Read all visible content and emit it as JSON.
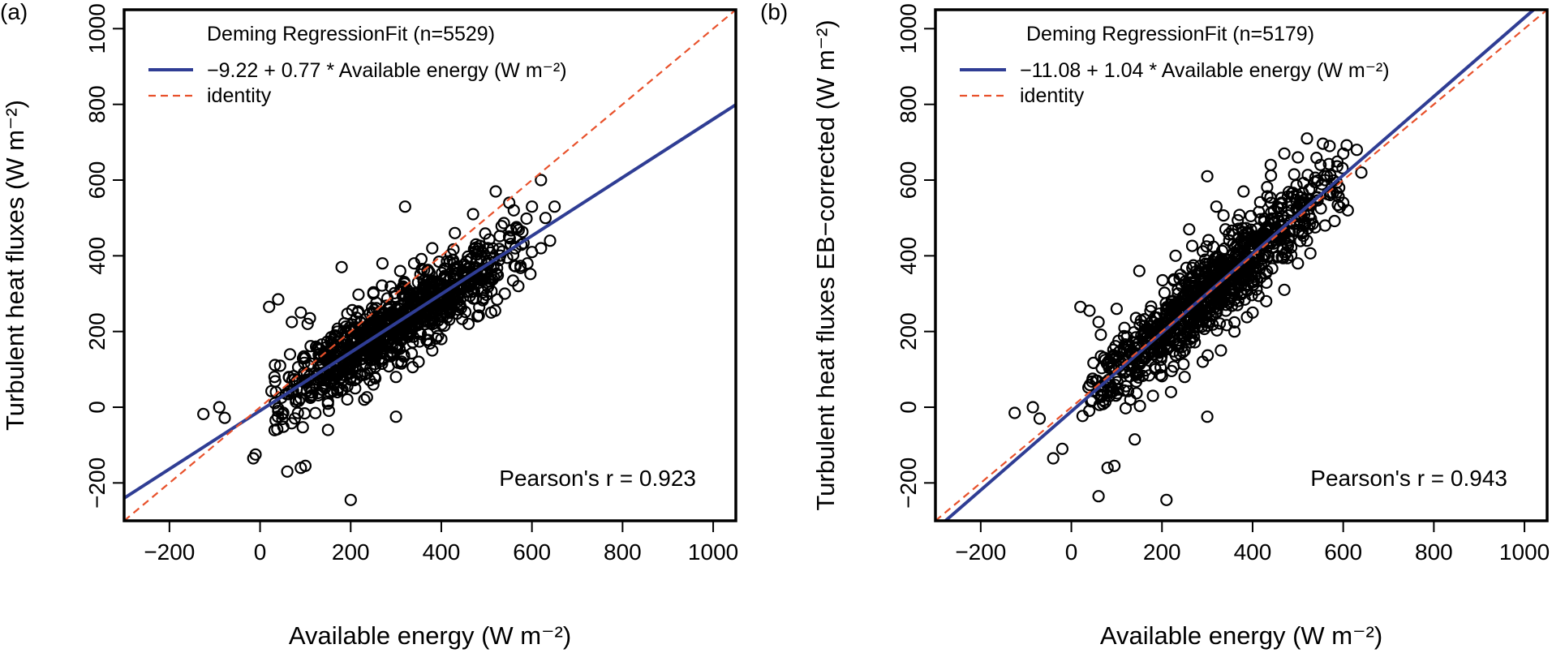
{
  "colors": {
    "fit": "#2f3d94",
    "identity": "#e8512b",
    "points": "#000000"
  },
  "chart_data": [
    {
      "type": "scatter",
      "panel_label": "(a)",
      "xlabel": "Available energy (W m⁻²)",
      "ylabel": "Turbulent heat fluxes (W m⁻²)",
      "xlim": [
        -300,
        1050
      ],
      "ylim": [
        -300,
        1050
      ],
      "xticks": [
        -200,
        0,
        200,
        400,
        600,
        800,
        1000
      ],
      "yticks": [
        -200,
        0,
        200,
        400,
        600,
        800,
        1000
      ],
      "xtick_labels": [
        "−200",
        "0",
        "200",
        "400",
        "600",
        "800",
        "1000"
      ],
      "ytick_labels": [
        "−200",
        "0",
        "200",
        "400",
        "600",
        "800",
        "1000"
      ],
      "legend_title": "Deming RegressionFit (n=5529)",
      "legend": [
        {
          "label": "−9.22 + 0.77 * Available energy (W m⁻²)",
          "style": "solid"
        },
        {
          "label": "identity",
          "style": "dashed"
        }
      ],
      "fit": {
        "intercept": -9.22,
        "slope": 0.77
      },
      "identity": {
        "intercept": 0,
        "slope": 1
      },
      "n": 5529,
      "pearson_text": "Pearson's r = 0.923",
      "pearson_r": 0.923,
      "outliers": [
        [
          -125,
          -18
        ],
        [
          -90,
          0
        ],
        [
          -78,
          -28
        ],
        [
          -15,
          -135
        ],
        [
          -10,
          -125
        ],
        [
          40,
          -10
        ],
        [
          35,
          40
        ],
        [
          60,
          -170
        ],
        [
          90,
          -160
        ],
        [
          100,
          -155
        ],
        [
          150,
          -60
        ],
        [
          200,
          -245
        ],
        [
          300,
          -25
        ],
        [
          320,
          530
        ],
        [
          180,
          370
        ],
        [
          40,
          285
        ],
        [
          20,
          265
        ],
        [
          70,
          225
        ],
        [
          90,
          250
        ],
        [
          110,
          235
        ],
        [
          250,
          300
        ],
        [
          270,
          380
        ],
        [
          340,
          380
        ],
        [
          380,
          420
        ],
        [
          430,
          460
        ],
        [
          470,
          510
        ],
        [
          520,
          570
        ],
        [
          550,
          540
        ],
        [
          560,
          520
        ],
        [
          620,
          600
        ],
        [
          600,
          530
        ],
        [
          630,
          500
        ],
        [
          650,
          530
        ],
        [
          640,
          440
        ],
        [
          620,
          420
        ],
        [
          600,
          410
        ],
        [
          590,
          380
        ],
        [
          570,
          320
        ],
        [
          540,
          300
        ],
        [
          510,
          250
        ],
        [
          480,
          240
        ],
        [
          460,
          220
        ],
        [
          400,
          180
        ],
        [
          380,
          150
        ],
        [
          350,
          120
        ],
        [
          300,
          80
        ],
        [
          250,
          60
        ],
        [
          230,
          20
        ],
        [
          210,
          50
        ],
        [
          150,
          15
        ]
      ],
      "cloud": {
        "x_min": -60,
        "x_max": 600,
        "residual_sd": 48,
        "seed": 11,
        "count": 900
      }
    },
    {
      "type": "scatter",
      "panel_label": "(b)",
      "xlabel": "Available energy (W m⁻²)",
      "ylabel": "Turbulent heat fluxes EB−corrected (W m⁻²)",
      "xlim": [
        -300,
        1050
      ],
      "ylim": [
        -300,
        1050
      ],
      "xticks": [
        -200,
        0,
        200,
        400,
        600,
        800,
        1000
      ],
      "yticks": [
        -200,
        0,
        200,
        400,
        600,
        800,
        1000
      ],
      "xtick_labels": [
        "−200",
        "0",
        "200",
        "400",
        "600",
        "800",
        "1000"
      ],
      "ytick_labels": [
        "−200",
        "0",
        "200",
        "400",
        "600",
        "800",
        "1000"
      ],
      "legend_title": "Deming RegressionFit (n=5179)",
      "legend": [
        {
          "label": "−11.08 + 1.04 * Available energy (W m⁻²)",
          "style": "solid"
        },
        {
          "label": "identity",
          "style": "dashed"
        }
      ],
      "fit": {
        "intercept": -11.08,
        "slope": 1.04
      },
      "identity": {
        "intercept": 0,
        "slope": 1
      },
      "n": 5179,
      "pearson_text": "Pearson's r = 0.943",
      "pearson_r": 0.943,
      "outliers": [
        [
          -125,
          -15
        ],
        [
          -85,
          0
        ],
        [
          -70,
          -30
        ],
        [
          -40,
          -135
        ],
        [
          -20,
          -110
        ],
        [
          60,
          -235
        ],
        [
          80,
          -160
        ],
        [
          95,
          -155
        ],
        [
          140,
          -85
        ],
        [
          210,
          -245
        ],
        [
          300,
          -25
        ],
        [
          300,
          610
        ],
        [
          150,
          360
        ],
        [
          20,
          265
        ],
        [
          40,
          255
        ],
        [
          60,
          225
        ],
        [
          100,
          260
        ],
        [
          230,
          400
        ],
        [
          260,
          470
        ],
        [
          320,
          530
        ],
        [
          380,
          570
        ],
        [
          440,
          640
        ],
        [
          470,
          670
        ],
        [
          500,
          660
        ],
        [
          520,
          710
        ],
        [
          570,
          690
        ],
        [
          600,
          670
        ],
        [
          630,
          680
        ],
        [
          640,
          620
        ],
        [
          600,
          540
        ],
        [
          610,
          520
        ],
        [
          560,
          480
        ],
        [
          520,
          440
        ],
        [
          500,
          380
        ],
        [
          470,
          310
        ],
        [
          430,
          280
        ],
        [
          400,
          250
        ],
        [
          360,
          200
        ],
        [
          330,
          150
        ],
        [
          290,
          120
        ],
        [
          250,
          80
        ],
        [
          220,
          40
        ],
        [
          180,
          30
        ],
        [
          130,
          20
        ],
        [
          90,
          40
        ],
        [
          250,
          150
        ],
        [
          400,
          330
        ],
        [
          550,
          640
        ],
        [
          560,
          600
        ],
        [
          340,
          470
        ]
      ],
      "cloud": {
        "x_min": -60,
        "x_max": 620,
        "residual_sd": 52,
        "seed": 23,
        "count": 900
      }
    }
  ]
}
